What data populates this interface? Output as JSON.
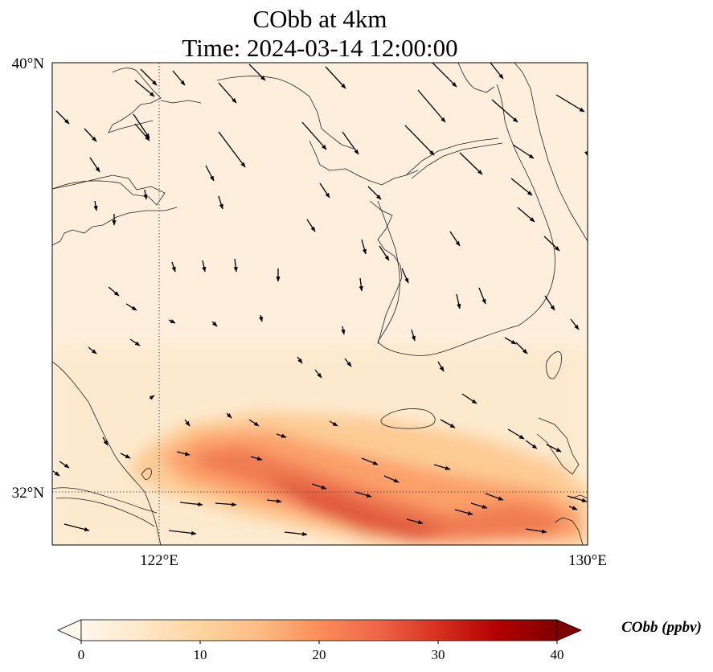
{
  "figure": {
    "title_line1": "CObb at 4km",
    "title_line2": "Time: 2024-03-14 12:00:00"
  },
  "map": {
    "lon_range": [
      120,
      130
    ],
    "lat_range": [
      31,
      40
    ],
    "gridlines": {
      "lon": [
        122
      ],
      "lat": [
        32
      ],
      "style": "dotted"
    },
    "x_ticks": [
      {
        "value": 122,
        "label": "122°E"
      },
      {
        "value": 130,
        "label": "130°E"
      }
    ],
    "y_ticks": [
      {
        "value": 40,
        "label": "40°N"
      },
      {
        "value": 32,
        "label": "32°N"
      }
    ],
    "field_colormap": "OrRd",
    "plume_peak_ppbv": 27,
    "wind_vectors": "northwest-to-southeast flow"
  },
  "colorbar": {
    "label": "CObb (ppbv)",
    "min": 0,
    "max": 40,
    "ticks": [
      "0",
      "10",
      "20",
      "30",
      "40"
    ],
    "extend": "both",
    "colors": [
      "#fff7ec",
      "#fee8c8",
      "#fdd49e",
      "#fdbb84",
      "#fc8d59",
      "#ef6548",
      "#d7301f",
      "#b30000",
      "#7f0000"
    ]
  }
}
